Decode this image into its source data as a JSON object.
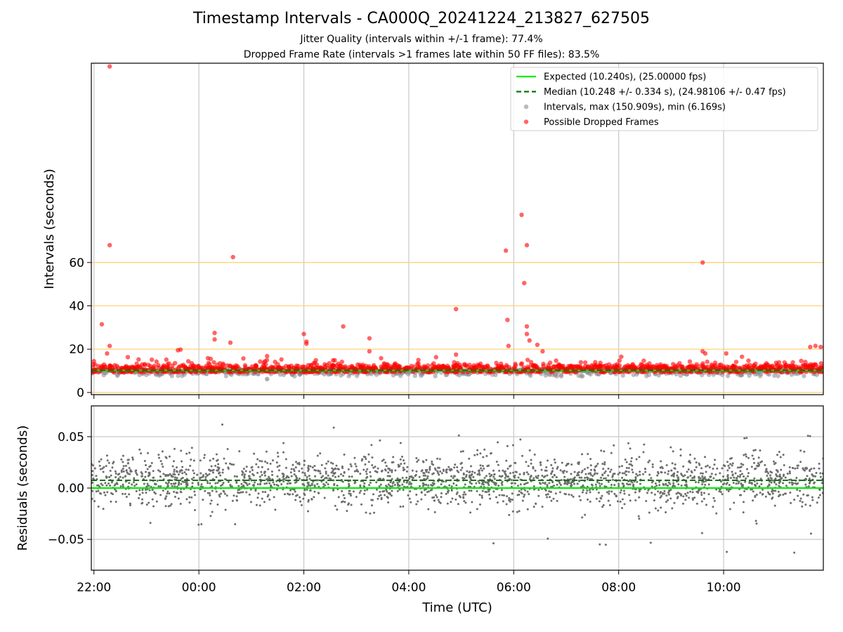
{
  "title": "Timestamp Intervals - CA000Q_20241224_213827_627505",
  "subtitle1": "Jitter Quality (intervals within +/-1 frame): 77.4%",
  "subtitle2": "Dropped Frame Rate (intervals >1 frames late within 50 FF files): 83.5%",
  "colors": {
    "expected": "#00ee00",
    "median": "#007700",
    "interval_points": "#8a8a8a",
    "dropped_points": "#ff0000",
    "reference_lines": "#ffd27a",
    "grid": "#c8c8c8",
    "residual_points": "#6e6e6e"
  },
  "chart_data": [
    {
      "type": "scatter",
      "name": "intervals",
      "ylabel": "Intervals (seconds)",
      "xlabel": "",
      "x_unit": "hours from 00:00 UTC",
      "xlim": [
        -2.05,
        11.9
      ],
      "ylim": [
        -1,
        152
      ],
      "y_ticks": [
        0,
        20,
        40,
        60
      ],
      "x_tick_labels": [
        "22:00",
        "00:00",
        "02:00",
        "04:00",
        "06:00",
        "08:00",
        "10:00"
      ],
      "x_tick_values": [
        -2,
        0,
        2,
        4,
        6,
        8,
        10
      ],
      "reference_lines": [
        0,
        20,
        40,
        60
      ],
      "expected_value": 10.24,
      "median_value": 10.248,
      "data_start_x": -2.35,
      "legend_position": "top-right",
      "legend": [
        "Expected (10.240s), (25.00000 fps)",
        "Median (10.248 +/- 0.334 s), (24.98106 +/- 0.47 fps)",
        "Intervals, max (150.909s), min (6.169s)",
        "Possible Dropped Frames"
      ],
      "dropped_outliers": [
        [
          -1.7,
          150.5
        ],
        [
          -1.7,
          68
        ],
        [
          -1.85,
          31.5
        ],
        [
          -1.7,
          21.5
        ],
        [
          -1.75,
          18
        ],
        [
          -0.4,
          19.5
        ],
        [
          -0.35,
          19.8
        ],
        [
          0.3,
          27.5
        ],
        [
          0.3,
          24.5
        ],
        [
          0.6,
          23
        ],
        [
          0.65,
          62.5
        ],
        [
          1.3,
          16.8
        ],
        [
          2.0,
          27
        ],
        [
          2.05,
          22.5
        ],
        [
          2.05,
          23.5
        ],
        [
          2.75,
          30.5
        ],
        [
          3.25,
          25
        ],
        [
          3.25,
          19
        ],
        [
          4.9,
          38.5
        ],
        [
          4.9,
          17.5
        ],
        [
          5.85,
          65.5
        ],
        [
          5.88,
          33.5
        ],
        [
          5.9,
          21.5
        ],
        [
          6.15,
          82
        ],
        [
          6.2,
          50.5
        ],
        [
          6.25,
          68
        ],
        [
          6.25,
          30.5
        ],
        [
          6.25,
          27
        ],
        [
          6.3,
          24
        ],
        [
          6.45,
          22
        ],
        [
          6.55,
          19
        ],
        [
          8.05,
          16.5
        ],
        [
          9.6,
          60
        ],
        [
          9.6,
          19
        ],
        [
          9.65,
          18
        ],
        [
          10.05,
          18
        ],
        [
          10.35,
          16.5
        ],
        [
          11.65,
          21
        ],
        [
          11.75,
          21.5
        ],
        [
          11.85,
          21
        ]
      ],
      "min_interval": [
        1.3,
        6.17
      ],
      "max_interval": [
        -1.7,
        150.909
      ]
    },
    {
      "type": "scatter",
      "name": "residuals",
      "ylabel": "Residuals (seconds)",
      "xlabel": "Time (UTC)",
      "xlim": [
        -2.05,
        11.9
      ],
      "ylim": [
        -0.08,
        0.08
      ],
      "y_tick_labels": [
        "0.05",
        "0.00",
        "−0.05"
      ],
      "y_tick_values": [
        0.05,
        0,
        -0.05
      ],
      "expected_value": 0.0,
      "median_value": 0.0075,
      "data_start_x": -2.35
    }
  ]
}
